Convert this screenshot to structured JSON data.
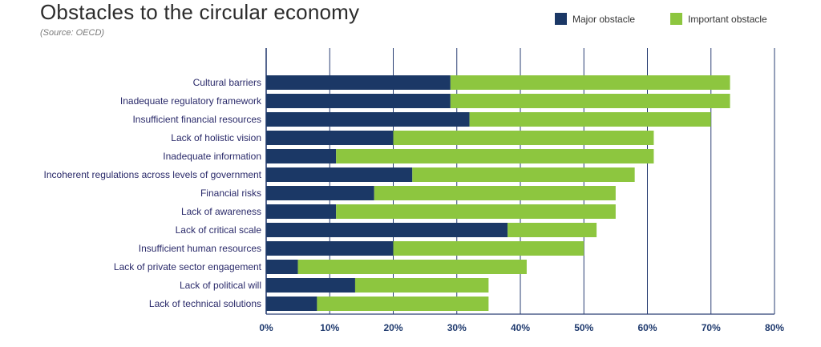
{
  "header": {
    "title": "Obstacles to the circular economy",
    "subtitle": "(Source: OECD)"
  },
  "legend": {
    "major_label": "Major obstacle",
    "important_label": "Important obstacle"
  },
  "colors": {
    "major": "#1b3866",
    "important": "#8dc63f",
    "grid": "#2a3f73"
  },
  "chart_data": {
    "type": "bar",
    "orientation": "horizontal",
    "stacked": true,
    "title": "Obstacles to the circular economy",
    "subtitle": "(Source: OECD)",
    "categories": [
      "Cultural barriers",
      "Inadequate regulatory framework",
      "Insufficient financial resources",
      "Lack of holistic vision",
      "Inadequate information",
      "Incoherent regulations across levels of government",
      "Financial risks",
      "Lack of awareness",
      "Lack of critical scale",
      "Insufficient human resources",
      "Lack of private sector engagement",
      "Lack of political will",
      "Lack of technical solutions"
    ],
    "series": [
      {
        "name": "Major obstacle",
        "values": [
          29,
          29,
          32,
          20,
          11,
          23,
          17,
          11,
          38,
          20,
          5,
          14,
          8
        ]
      },
      {
        "name": "Important obstacle",
        "values": [
          44,
          44,
          38,
          41,
          50,
          35,
          38,
          44,
          14,
          30,
          36,
          21,
          27
        ]
      }
    ],
    "xlim": [
      0,
      80
    ],
    "xticks": [
      "0%",
      "10%",
      "20%",
      "30%",
      "40%",
      "50%",
      "60%",
      "70%",
      "80%"
    ],
    "grid": true,
    "legend_position": "top-right"
  }
}
